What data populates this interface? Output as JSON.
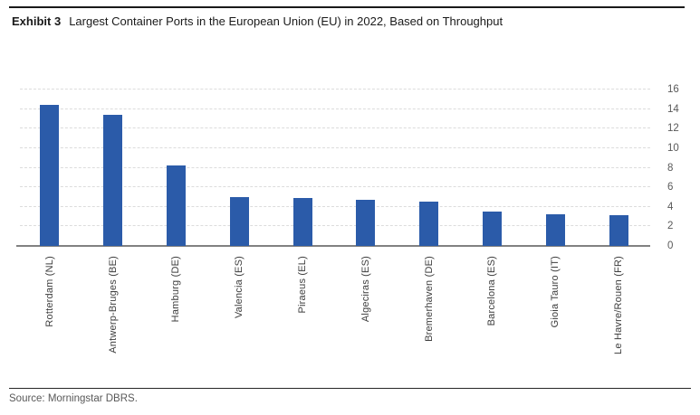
{
  "header": {
    "exhibit_label": "Exhibit 3",
    "title": "Largest Container Ports in the European Union (EU) in 2022, Based on Throughput"
  },
  "chart_data": {
    "type": "bar",
    "title": "Largest Container Ports in the European Union (EU) in 2022, Based on Throughput",
    "categories": [
      "Rotterdam (NL)",
      "Antwerp-Bruges (BE)",
      "Hamburg (DE)",
      "Valencia (ES)",
      "Piraeus (EL)",
      "Algeciras (ES)",
      "Bremerhaven (DE)",
      "Barcelona (ES)",
      "Gioia Tauro (IT)",
      "Le Havre/Rouen (FR)"
    ],
    "values": [
      14.4,
      13.4,
      8.2,
      5.0,
      4.9,
      4.7,
      4.5,
      3.5,
      3.2,
      3.1
    ],
    "xlabel": "",
    "ylabel": "",
    "ylim": [
      0,
      16
    ],
    "ytick_step": 2,
    "yaxis_side": "right",
    "grid": true,
    "legend": false,
    "category_label_rotation": -90,
    "bar_color": "#2b5ba9"
  },
  "footer": {
    "source": "Source: Morningstar DBRS."
  },
  "colors": {
    "bar": "#2b5ba9",
    "gridline": "#dcdcdc",
    "axis_line": "#818181",
    "tick_label": "#595959",
    "category_label": "#3d3d3d",
    "rule": "#1a1a1a"
  }
}
